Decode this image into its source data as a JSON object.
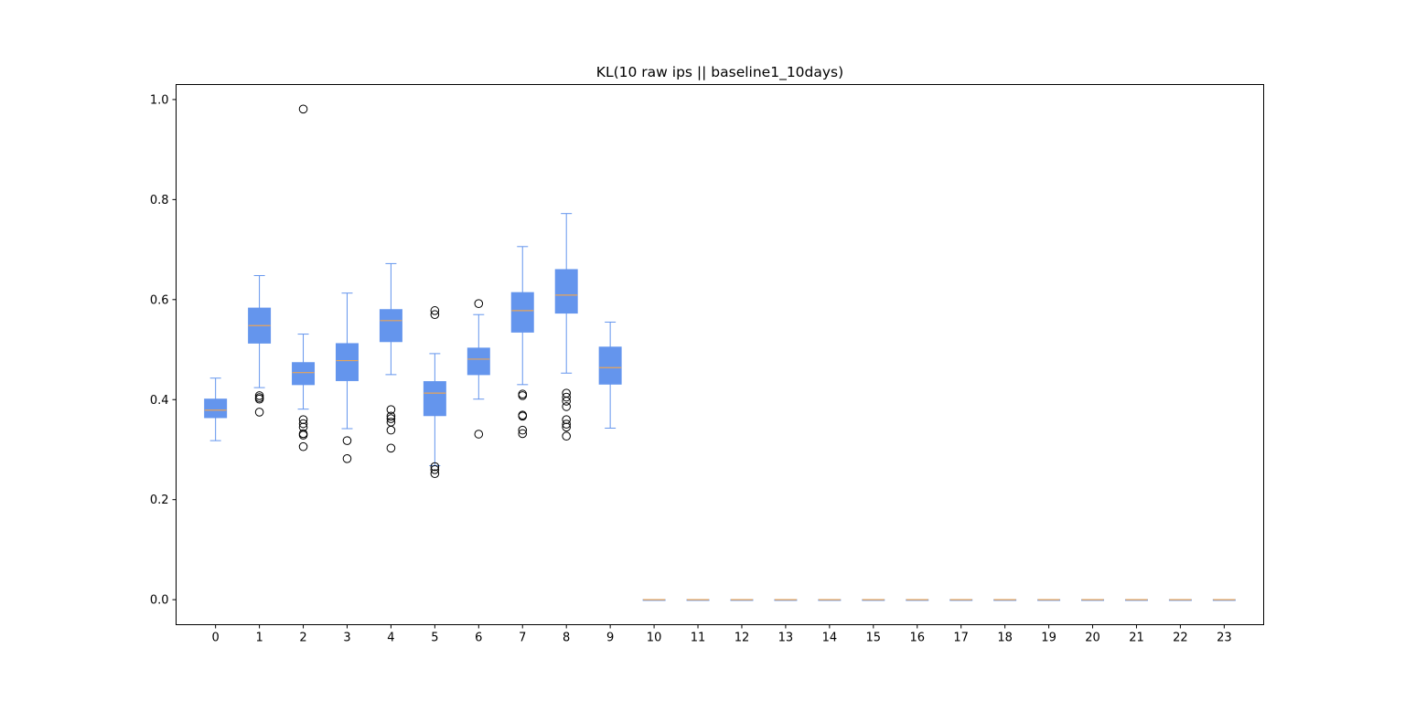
{
  "chart_data": {
    "type": "boxplot",
    "title": "KL(10 raw ips || baseline1_10days)",
    "xlabel": "",
    "ylabel": "",
    "ylim": [
      -0.05,
      1.03
    ],
    "yticks": [
      "0.0",
      "0.2",
      "0.4",
      "0.6",
      "0.8",
      "1.0"
    ],
    "categories": [
      "0",
      "1",
      "2",
      "3",
      "4",
      "5",
      "6",
      "7",
      "8",
      "9",
      "10",
      "11",
      "12",
      "13",
      "14",
      "15",
      "16",
      "17",
      "18",
      "19",
      "20",
      "21",
      "22",
      "23"
    ],
    "box_color": "#6495ED",
    "median_color": "#E8A55A",
    "boxes": [
      {
        "whislo": 0.318,
        "q1": 0.364,
        "med": 0.379,
        "q3": 0.401,
        "whishi": 0.443,
        "fliers": []
      },
      {
        "whislo": 0.424,
        "q1": 0.513,
        "med": 0.548,
        "q3": 0.583,
        "whishi": 0.648,
        "fliers": [
          0.375,
          0.401,
          0.404,
          0.408
        ]
      },
      {
        "whislo": 0.381,
        "q1": 0.43,
        "med": 0.454,
        "q3": 0.474,
        "whishi": 0.531,
        "fliers": [
          0.306,
          0.329,
          0.332,
          0.345,
          0.352,
          0.36,
          0.981
        ]
      },
      {
        "whislo": 0.342,
        "q1": 0.438,
        "med": 0.478,
        "q3": 0.512,
        "whishi": 0.613,
        "fliers": [
          0.282,
          0.318
        ]
      },
      {
        "whislo": 0.45,
        "q1": 0.516,
        "med": 0.558,
        "q3": 0.58,
        "whishi": 0.672,
        "fliers": [
          0.303,
          0.339,
          0.355,
          0.362,
          0.367,
          0.38
        ]
      },
      {
        "whislo": 0.268,
        "q1": 0.368,
        "med": 0.413,
        "q3": 0.436,
        "whishi": 0.492,
        "fliers": [
          0.252,
          0.26,
          0.266,
          0.57,
          0.578
        ]
      },
      {
        "whislo": 0.401,
        "q1": 0.45,
        "med": 0.481,
        "q3": 0.503,
        "whishi": 0.57,
        "fliers": [
          0.331,
          0.592
        ]
      },
      {
        "whislo": 0.43,
        "q1": 0.535,
        "med": 0.578,
        "q3": 0.614,
        "whishi": 0.706,
        "fliers": [
          0.332,
          0.339,
          0.367,
          0.369,
          0.408,
          0.411
        ]
      },
      {
        "whislo": 0.453,
        "q1": 0.573,
        "med": 0.609,
        "q3": 0.66,
        "whishi": 0.772,
        "fliers": [
          0.327,
          0.345,
          0.351,
          0.36,
          0.386,
          0.397,
          0.405,
          0.413
        ]
      },
      {
        "whislo": 0.343,
        "q1": 0.431,
        "med": 0.464,
        "q3": 0.505,
        "whishi": 0.555,
        "fliers": []
      },
      {
        "whislo": 0,
        "q1": 0,
        "med": 0,
        "q3": 0,
        "whishi": 0,
        "fliers": []
      },
      {
        "whislo": 0,
        "q1": 0,
        "med": 0,
        "q3": 0,
        "whishi": 0,
        "fliers": []
      },
      {
        "whislo": 0,
        "q1": 0,
        "med": 0,
        "q3": 0,
        "whishi": 0,
        "fliers": []
      },
      {
        "whislo": 0,
        "q1": 0,
        "med": 0,
        "q3": 0,
        "whishi": 0,
        "fliers": []
      },
      {
        "whislo": 0,
        "q1": 0,
        "med": 0,
        "q3": 0,
        "whishi": 0,
        "fliers": []
      },
      {
        "whislo": 0,
        "q1": 0,
        "med": 0,
        "q3": 0,
        "whishi": 0,
        "fliers": []
      },
      {
        "whislo": 0,
        "q1": 0,
        "med": 0,
        "q3": 0,
        "whishi": 0,
        "fliers": []
      },
      {
        "whislo": 0,
        "q1": 0,
        "med": 0,
        "q3": 0,
        "whishi": 0,
        "fliers": []
      },
      {
        "whislo": 0,
        "q1": 0,
        "med": 0,
        "q3": 0,
        "whishi": 0,
        "fliers": []
      },
      {
        "whislo": 0,
        "q1": 0,
        "med": 0,
        "q3": 0,
        "whishi": 0,
        "fliers": []
      },
      {
        "whislo": 0,
        "q1": 0,
        "med": 0,
        "q3": 0,
        "whishi": 0,
        "fliers": []
      },
      {
        "whislo": 0,
        "q1": 0,
        "med": 0,
        "q3": 0,
        "whishi": 0,
        "fliers": []
      },
      {
        "whislo": 0,
        "q1": 0,
        "med": 0,
        "q3": 0,
        "whishi": 0,
        "fliers": []
      },
      {
        "whislo": 0,
        "q1": 0,
        "med": 0,
        "q3": 0,
        "whishi": 0,
        "fliers": []
      }
    ],
    "grid": false,
    "legend": "none"
  }
}
